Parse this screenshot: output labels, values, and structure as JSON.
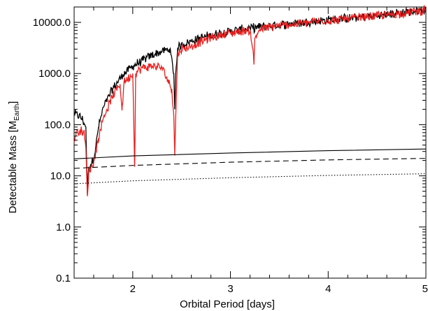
{
  "chart_data": {
    "type": "line",
    "xlabel": "Orbital Period [days]",
    "ylabel_main": "Detectable Mass [M",
    "ylabel_sub": "Earth",
    "ylabel_close": "]",
    "xscale": "linear",
    "yscale": "log",
    "xlim": [
      1.4,
      5.0
    ],
    "ylim": [
      0.1,
      20000
    ],
    "x_ticks": [
      2,
      3,
      4,
      5
    ],
    "x_tick_labels": [
      "2",
      "3",
      "4",
      "5"
    ],
    "y_ticks": [
      0.1,
      1,
      10,
      100,
      1000,
      10000
    ],
    "y_tick_labels": [
      "0.1",
      "1.0",
      "10.0",
      "100.0",
      "1000.0",
      "10000.0"
    ],
    "grid": false,
    "legend": "none",
    "colors": {
      "black": "#000000",
      "red": "#e8201f"
    },
    "series": [
      {
        "style": "solid-black-jagged",
        "x": [
          1.4,
          1.45,
          1.48,
          1.5,
          1.52,
          1.535,
          1.55,
          1.57,
          1.6,
          1.62,
          1.65,
          1.7,
          1.8,
          1.9,
          2.0,
          2.1,
          2.2,
          2.3,
          2.38,
          2.42,
          2.43,
          2.44,
          2.46,
          2.5,
          2.6,
          2.7,
          2.8,
          2.9,
          3.0,
          3.1,
          3.2,
          3.3,
          3.4,
          3.6,
          3.8,
          4.0,
          4.2,
          4.4,
          4.6,
          4.8,
          5.0
        ],
        "y": [
          165,
          150,
          130,
          110,
          90,
          5,
          15,
          17,
          22,
          35,
          90,
          220,
          520,
          960,
          1400,
          1800,
          2300,
          2700,
          3000,
          1000,
          200,
          1000,
          3200,
          3600,
          4300,
          5000,
          5600,
          6200,
          6700,
          7200,
          7600,
          8100,
          8500,
          9300,
          10200,
          11100,
          12000,
          13000,
          14200,
          15800,
          17500
        ]
      },
      {
        "style": "solid-red-jagged",
        "x": [
          1.4,
          1.42,
          1.44,
          1.46,
          1.48,
          1.5,
          1.52,
          1.535,
          1.55,
          1.57,
          1.6,
          1.65,
          1.7,
          1.8,
          1.87,
          1.89,
          1.91,
          2.0,
          2.02,
          2.03,
          2.05,
          2.1,
          2.2,
          2.3,
          2.4,
          2.42,
          2.43,
          2.44,
          2.46,
          2.5,
          2.6,
          2.7,
          2.8,
          2.9,
          3.0,
          3.1,
          3.2,
          3.23,
          3.24,
          3.25,
          3.3,
          3.4,
          3.6,
          3.8,
          4.0,
          4.2,
          4.4,
          4.6,
          4.8,
          5.0
        ],
        "y": [
          45,
          75,
          70,
          80,
          75,
          70,
          35,
          4,
          12,
          14,
          18,
          55,
          140,
          380,
          620,
          190,
          680,
          1000,
          15,
          1000,
          1100,
          1300,
          1400,
          1300,
          500,
          150,
          25,
          150,
          2500,
          2900,
          3500,
          4200,
          5000,
          5700,
          6200,
          6700,
          7000,
          3000,
          1500,
          5000,
          7300,
          8000,
          9100,
          10000,
          10900,
          11800,
          12800,
          14000,
          15500,
          17500
        ]
      },
      {
        "style": "solid-black",
        "x": [
          1.4,
          2.0,
          3.0,
          4.0,
          5.0
        ],
        "y": [
          21.5,
          24.5,
          28.0,
          31.0,
          33.5
        ]
      },
      {
        "style": "dashed-black",
        "x": [
          1.4,
          2.0,
          3.0,
          4.0,
          5.0
        ],
        "y": [
          14.0,
          16.0,
          18.5,
          20.5,
          22.0
        ]
      },
      {
        "style": "dotted-black",
        "x": [
          1.4,
          2.0,
          3.0,
          4.0,
          5.0
        ],
        "y": [
          7.0,
          8.0,
          9.2,
          10.2,
          11.0
        ]
      }
    ]
  }
}
